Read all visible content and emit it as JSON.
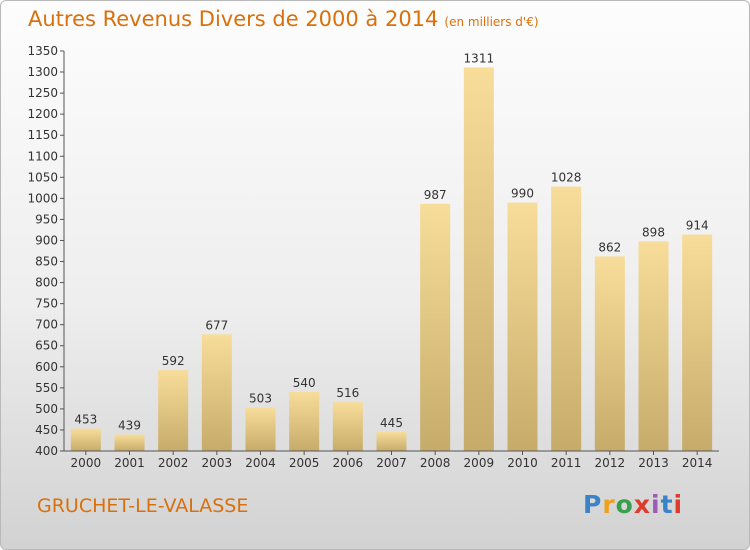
{
  "title": "Autres Revenus Divers de 2000 à 2014",
  "unit": "(en milliers d'€)",
  "location": "GRUCHET-LE-VALASSE",
  "brand": "Proxiti",
  "colors": {
    "title": "#d9700c",
    "bar_light": "#f8dd9a",
    "bar_dark": "#c6ab6a",
    "brand": [
      "#3a83c9",
      "#f0a020",
      "#38a04a",
      "#e03a2a",
      "#9c5bb6",
      "#3a83c9",
      "#e03a2a"
    ]
  },
  "chart_data": {
    "type": "bar",
    "title": "Autres Revenus Divers de 2000 à 2014",
    "categories": [
      "2000",
      "2001",
      "2002",
      "2003",
      "2004",
      "2005",
      "2006",
      "2007",
      "2008",
      "2009",
      "2010",
      "2011",
      "2012",
      "2013",
      "2014"
    ],
    "values": [
      453,
      439,
      592,
      677,
      503,
      540,
      516,
      445,
      987,
      1311,
      990,
      1028,
      862,
      898,
      914
    ],
    "ylim": [
      400,
      1350
    ],
    "yticks": [
      400,
      450,
      500,
      550,
      600,
      650,
      700,
      750,
      800,
      850,
      900,
      950,
      1000,
      1050,
      1100,
      1150,
      1200,
      1250,
      1300,
      1350
    ],
    "grid": false,
    "xlabel": "",
    "ylabel": ""
  }
}
